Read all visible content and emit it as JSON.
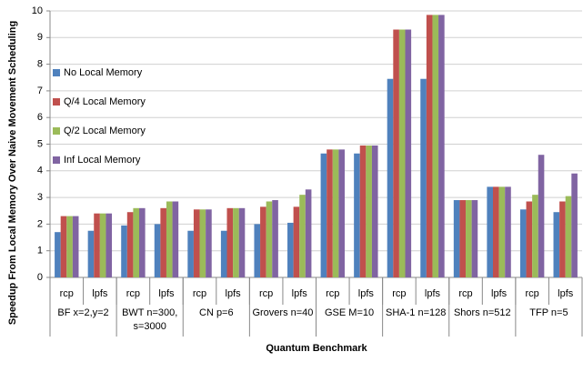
{
  "chart_data": {
    "type": "bar",
    "y_label": "Speedup From Local Memory Over Naive Movement Scheduling",
    "x_label": "Quantum Benchmark",
    "categories": [
      "rcp",
      "lpfs",
      "rcp",
      "lpfs",
      "rcp",
      "lpfs",
      "rcp",
      "lpfs",
      "rcp",
      "lpfs",
      "rcp",
      "lpfs",
      "rcp",
      "lpfs",
      "rcp",
      "lpfs"
    ],
    "groups": [
      [
        "BF x=2,y=2"
      ],
      [
        "BWT n=300,",
        "s=3000"
      ],
      [
        "CN p=6"
      ],
      [
        "Grovers n=40"
      ],
      [
        "GSE M=10"
      ],
      [
        "SHA-1 n=128"
      ],
      [
        "Shors n=512"
      ],
      [
        "TFP n=5"
      ]
    ],
    "series": [
      {
        "name": "No Local Memory",
        "color": "#4f81bd",
        "values": [
          1.7,
          1.75,
          1.95,
          2.0,
          1.75,
          1.75,
          2.0,
          2.05,
          4.65,
          4.65,
          7.45,
          7.45,
          2.9,
          3.4,
          2.55,
          2.45
        ]
      },
      {
        "name": "Q/4 Local Memory",
        "color": "#c0504d",
        "values": [
          2.3,
          2.4,
          2.45,
          2.6,
          2.55,
          2.6,
          2.65,
          2.65,
          4.8,
          4.95,
          9.3,
          9.85,
          2.9,
          3.4,
          2.85,
          2.85
        ]
      },
      {
        "name": "Q/2 Local Memory",
        "color": "#9bbb59",
        "values": [
          2.3,
          2.4,
          2.6,
          2.85,
          2.55,
          2.6,
          2.85,
          3.1,
          4.8,
          4.95,
          9.3,
          9.85,
          2.9,
          3.4,
          3.1,
          3.05
        ]
      },
      {
        "name": "Inf Local Memory",
        "color": "#8064a2",
        "values": [
          2.3,
          2.4,
          2.6,
          2.85,
          2.55,
          2.6,
          2.9,
          3.3,
          4.8,
          4.95,
          9.3,
          9.85,
          2.9,
          3.4,
          4.6,
          3.9
        ]
      }
    ],
    "ylim": [
      0,
      10
    ],
    "yticks": [
      0,
      1,
      2,
      3,
      4,
      5,
      6,
      7,
      8,
      9,
      10
    ],
    "grid": true,
    "legend": "left"
  }
}
